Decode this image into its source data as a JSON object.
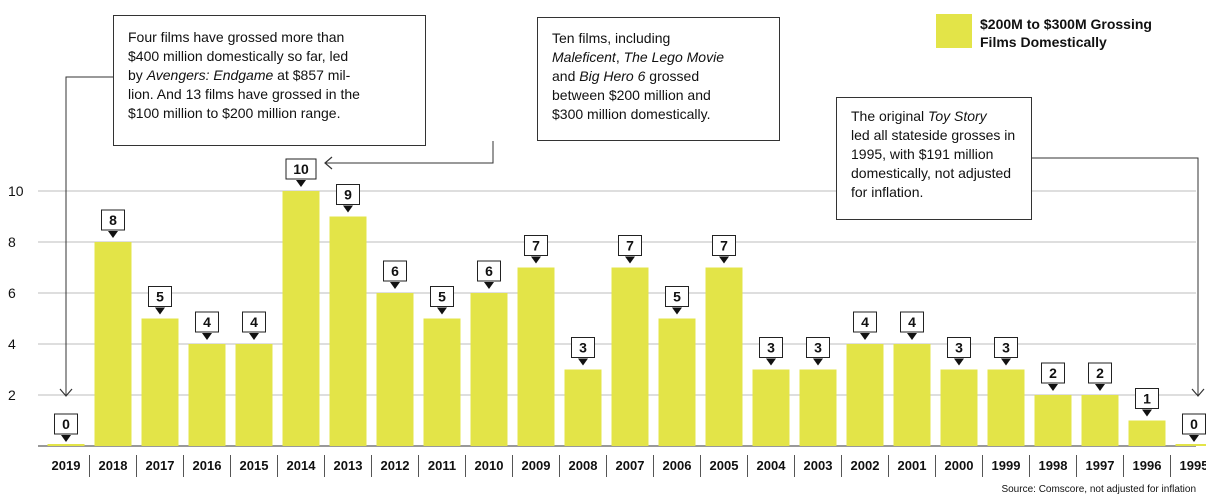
{
  "chart_data": {
    "type": "bar",
    "categories": [
      "2019",
      "2018",
      "2017",
      "2016",
      "2015",
      "2014",
      "2013",
      "2012",
      "2011",
      "2010",
      "2009",
      "2008",
      "2007",
      "2006",
      "2005",
      "2004",
      "2003",
      "2002",
      "2001",
      "2000",
      "1999",
      "1998",
      "1997",
      "1996",
      "1995"
    ],
    "series": [
      {
        "name": "$200M to $300M Grossing Films Domestically",
        "values": [
          0,
          8,
          5,
          4,
          4,
          10,
          9,
          6,
          5,
          6,
          7,
          3,
          7,
          5,
          7,
          3,
          3,
          4,
          4,
          3,
          3,
          2,
          2,
          1,
          0
        ]
      }
    ],
    "ylim": [
      0,
      10
    ],
    "yticks": [
      2,
      4,
      6,
      8,
      10
    ],
    "legend_position": "top-right",
    "bar_color": "#e3e448",
    "source": "Source: Comscore, not adjusted for inflation",
    "annotations": [
      {
        "id": "a2019",
        "target": "2019",
        "lines": [
          [
            {
              "t": "Four films have grossed more than"
            }
          ],
          [
            {
              "t": "$400 million domestically so far, led"
            }
          ],
          [
            {
              "t": "by "
            },
            {
              "t": "Avengers: Endgame",
              "i": true
            },
            {
              "t": " at $857 mil-"
            }
          ],
          [
            {
              "t": "lion. And 13 films have grossed in the"
            }
          ],
          [
            {
              "t": "$100 million to $200 million range."
            }
          ]
        ]
      },
      {
        "id": "a2014",
        "target": "2014",
        "lines": [
          [
            {
              "t": "Ten films, including"
            }
          ],
          [
            {
              "t": "Maleficent",
              "i": true
            },
            {
              "t": ", "
            },
            {
              "t": "The Lego Movie",
              "i": true
            }
          ],
          [
            {
              "t": "and "
            },
            {
              "t": "Big Hero 6",
              "i": true
            },
            {
              "t": " grossed"
            }
          ],
          [
            {
              "t": "between $200 million and"
            }
          ],
          [
            {
              "t": "$300 million domestically."
            }
          ]
        ]
      },
      {
        "id": "a1995",
        "target": "1995",
        "lines": [
          [
            {
              "t": "The original "
            },
            {
              "t": "Toy Story",
              "i": true
            }
          ],
          [
            {
              "t": "led all stateside grosses in"
            }
          ],
          [
            {
              "t": "1995, with $191 million"
            }
          ],
          [
            {
              "t": "domestically, not adjusted"
            }
          ],
          [
            {
              "t": "for inflation."
            }
          ]
        ]
      }
    ]
  }
}
